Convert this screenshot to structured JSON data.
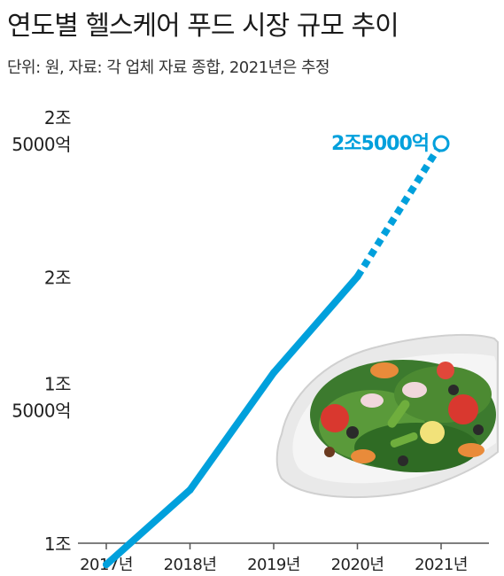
{
  "title": "연도별 헬스케어 푸드 시장 규모 추이",
  "subtitle": "단위: 원, 자료: 각 업체 자료 종합, 2021년은 추정",
  "colors": {
    "line": "#00a0dc",
    "axis": "#555555",
    "text": "#222222"
  },
  "chart_data": {
    "type": "line",
    "title": "연도별 헬스케어 푸드 시장 규모 추이",
    "categories": [
      "2017년",
      "2018년",
      "2019년",
      "2020년",
      "2021년"
    ],
    "values": [
      9200,
      12000,
      16400,
      20000,
      25000
    ],
    "estimated_from_index": 3,
    "estimate_note": "2021년은 추정",
    "callout": {
      "label": "2조5000억",
      "value": 25000,
      "category": "2021년"
    },
    "ylim": [
      10000,
      25000
    ],
    "yticks": [
      {
        "value": 10000,
        "lines": [
          "1조"
        ]
      },
      {
        "value": 15000,
        "lines": [
          "1조",
          "5000억"
        ]
      },
      {
        "value": 20000,
        "lines": [
          "2조"
        ]
      },
      {
        "value": 25000,
        "lines": [
          "2조",
          "5000억"
        ]
      }
    ],
    "grid": false
  },
  "decoration": {
    "image": "salad-plate-illustration"
  }
}
